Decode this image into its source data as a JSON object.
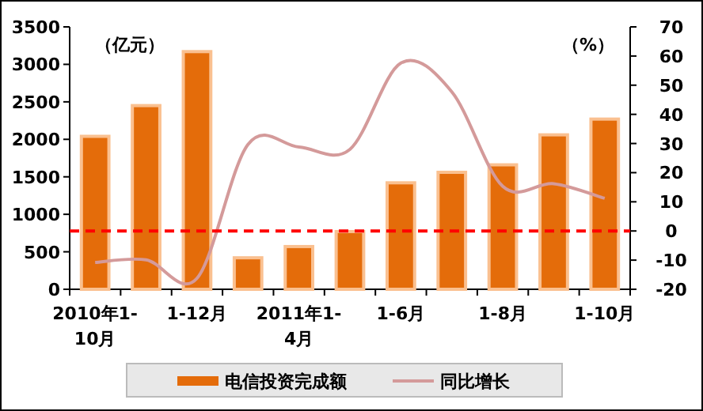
{
  "chart_data": {
    "type": "bar",
    "ylabel": "（亿元）",
    "y2label": "（%）",
    "categories": [
      "2010年1-10月",
      null,
      "1-12月",
      null,
      "2011年1-4月",
      null,
      "1-6月",
      null,
      "1-8月",
      null,
      "1-10月"
    ],
    "series": [
      {
        "name": "电信投资完成额",
        "color": "#e46c0a",
        "values": [
          2040,
          2450,
          3170,
          420,
          570,
          770,
          1420,
          1560,
          1660,
          2060,
          2270
        ]
      },
      {
        "name": "同比增长",
        "type": "line",
        "axis": "y2",
        "color": "#d49a9a",
        "values": [
          -10.8,
          -9.9,
          -16.2,
          29.7,
          28.8,
          28,
          57.6,
          47.7,
          15.3,
          16.2,
          11.2
        ]
      }
    ],
    "ylim": [
      0,
      3500
    ],
    "yticks": [
      0,
      500,
      1000,
      1500,
      2000,
      2500,
      3000,
      3500
    ],
    "y2lim": [
      -20,
      70
    ],
    "y2ticks": [
      -20,
      -10,
      0,
      10,
      20,
      30,
      40,
      50,
      60,
      70
    ],
    "ref_lines": [
      {
        "axis": "y2",
        "value": 0,
        "color": "#ff0000",
        "line_style": "dashed"
      }
    ],
    "grid": false,
    "legend": "bottom",
    "marker": "none"
  }
}
